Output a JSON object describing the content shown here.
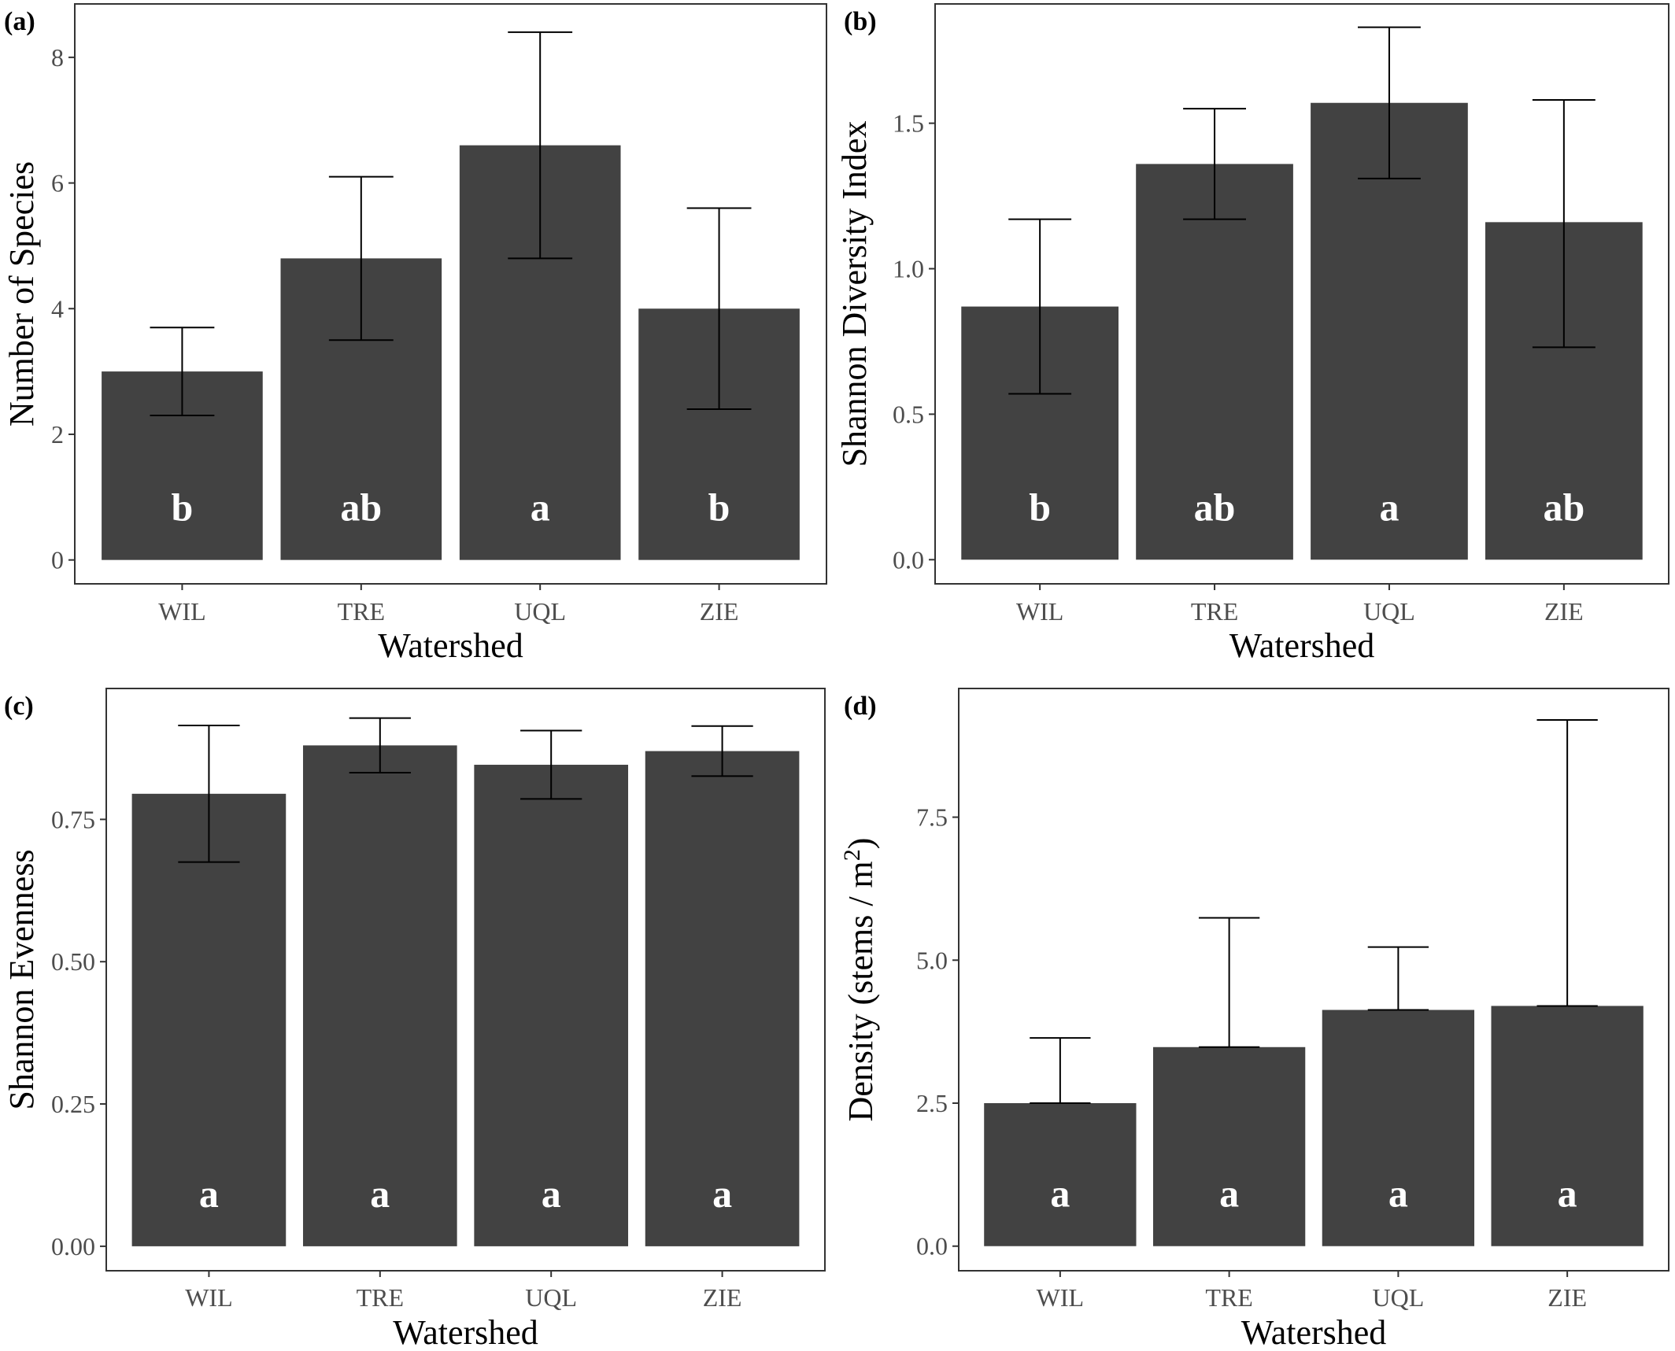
{
  "chart_data": [
    {
      "type": "bar",
      "panel_label": "(a)",
      "categories": [
        "WIL",
        "TRE",
        "UQL",
        "ZIE"
      ],
      "values": [
        3.0,
        4.8,
        6.6,
        4.0
      ],
      "error_low": [
        2.3,
        3.5,
        4.8,
        2.4
      ],
      "error_high": [
        3.7,
        6.1,
        8.4,
        5.6
      ],
      "letters": [
        "b",
        "ab",
        "a",
        "b"
      ],
      "xlabel": "Watershed",
      "ylabel": "Number of Species",
      "ylim": [
        -0.38,
        8.85
      ],
      "yticks": [
        0,
        2,
        4,
        6,
        8
      ],
      "ytick_labels": [
        "0",
        "2",
        "4",
        "6",
        "8"
      ],
      "grid": false
    },
    {
      "type": "bar",
      "panel_label": "(b)",
      "categories": [
        "WIL",
        "TRE",
        "UQL",
        "ZIE"
      ],
      "values": [
        0.87,
        1.36,
        1.57,
        1.16
      ],
      "error_low": [
        0.57,
        1.17,
        1.31,
        0.73
      ],
      "error_high": [
        1.17,
        1.55,
        1.83,
        1.58
      ],
      "letters": [
        "b",
        "ab",
        "a",
        "ab"
      ],
      "xlabel": "Watershed",
      "ylabel": "Shannon Diversity Index",
      "ylim": [
        -0.083,
        1.91
      ],
      "yticks": [
        0.0,
        0.5,
        1.0,
        1.5
      ],
      "ytick_labels": [
        "0.0",
        "0.5",
        "1.0",
        "1.5"
      ],
      "grid": false
    },
    {
      "type": "bar",
      "panel_label": "(c)",
      "categories": [
        "WIL",
        "TRE",
        "UQL",
        "ZIE"
      ],
      "values": [
        0.795,
        0.88,
        0.846,
        0.87
      ],
      "error_low": [
        0.675,
        0.832,
        0.786,
        0.826
      ],
      "error_high": [
        0.915,
        0.928,
        0.906,
        0.914
      ],
      "letters": [
        "a",
        "a",
        "a",
        "a"
      ],
      "xlabel": "Watershed",
      "ylabel": "Shannon Evenness",
      "ylim": [
        -0.043,
        0.98
      ],
      "yticks": [
        0.0,
        0.25,
        0.5,
        0.75
      ],
      "ytick_labels": [
        "0.00",
        "0.25",
        "0.50",
        "0.75"
      ],
      "grid": false
    },
    {
      "type": "bar",
      "panel_label": "(d)",
      "categories": [
        "WIL",
        "TRE",
        "UQL",
        "ZIE"
      ],
      "values": [
        2.5,
        3.48,
        4.13,
        4.2
      ],
      "error_low": [
        2.5,
        3.48,
        4.13,
        4.2
      ],
      "error_high": [
        3.64,
        5.74,
        5.23,
        9.2
      ],
      "letters": [
        "a",
        "a",
        "a",
        "a"
      ],
      "xlabel": "Watershed",
      "ylabel": "Density (stems / m",
      "ylabel_superscript": "2",
      "ylabel_suffix": ")",
      "ylim": [
        -0.43,
        9.75
      ],
      "yticks": [
        0.0,
        2.5,
        5.0,
        7.5
      ],
      "ytick_labels": [
        "0.0",
        "2.5",
        "5.0",
        "7.5"
      ],
      "grid": false
    }
  ]
}
